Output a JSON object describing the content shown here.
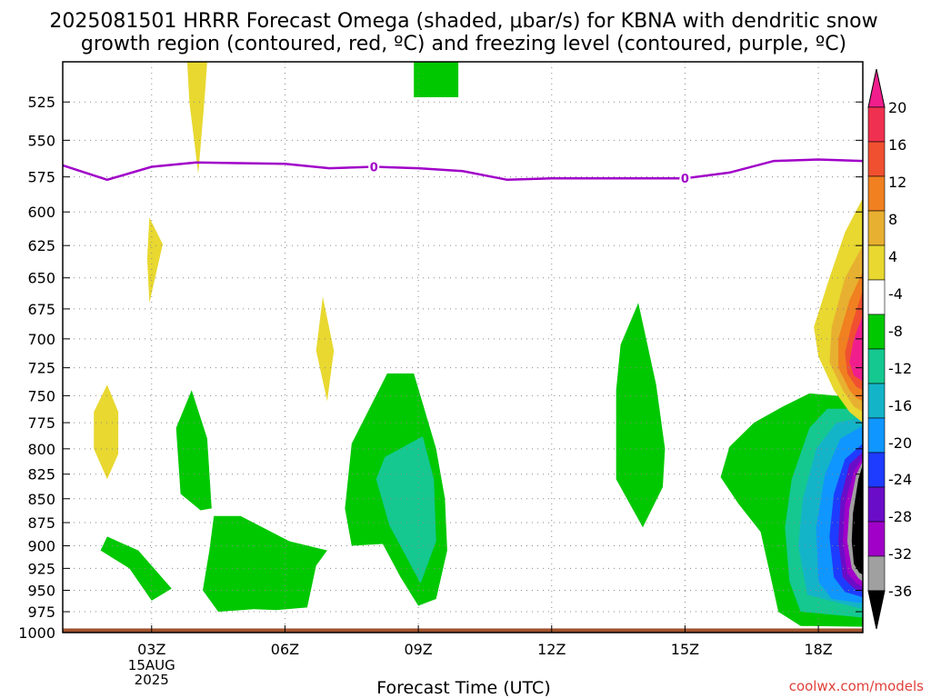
{
  "title_line1": "2025081501 HRRR Forecast Omega (shaded, μbar/s) for KBNA with dendritic snow",
  "title_line2": "growth region (contoured, red, ºC) and freezing level (contoured, purple, ºC)",
  "credit": "coolwx.com/models",
  "colors": {
    "frame": "#000000",
    "grid": "#888888",
    "freezing_level": "#a000c8",
    "terrain": "#a0522d",
    "colorbar": [
      "#000000",
      "#a0a0a0",
      "#a000c8",
      "#6a0dc8",
      "#1e3cff",
      "#0f96ff",
      "#14b4c8",
      "#14c890",
      "#00c800",
      "#ffffff",
      "#e8d830",
      "#e8b030",
      "#f08020",
      "#f05030",
      "#f03050",
      "#f01e8c"
    ]
  },
  "chart_data": {
    "type": "heatmap",
    "title": "2025081501 HRRR Forecast Omega (shaded, μbar/s) for KBNA with dendritic snow growth region (contoured, red, ºC) and freezing level (contoured, purple, ºC)",
    "xlabel": "Forecast Time (UTC)",
    "ylabel": "",
    "x_unit": "forecast hour from 2025081501",
    "xlim": [
      0,
      18
    ],
    "ylim": [
      1000,
      500
    ],
    "y_scale": "log",
    "grid": true,
    "x_ticks": [
      {
        "hour": 2,
        "label": "03Z",
        "sub": [
          "15AUG",
          "2025"
        ]
      },
      {
        "hour": 5,
        "label": "06Z"
      },
      {
        "hour": 8,
        "label": "09Z"
      },
      {
        "hour": 11,
        "label": "12Z"
      },
      {
        "hour": 14,
        "label": "15Z"
      },
      {
        "hour": 17,
        "label": "18Z"
      }
    ],
    "y_ticks": [
      525,
      550,
      575,
      600,
      625,
      650,
      675,
      700,
      725,
      750,
      775,
      800,
      825,
      850,
      875,
      900,
      925,
      950,
      975,
      1000
    ],
    "freezing_level": {
      "contour_labels": [
        "0",
        "0"
      ],
      "label_hours": [
        7,
        14
      ],
      "points": [
        [
          0,
          567
        ],
        [
          1,
          577
        ],
        [
          2,
          568
        ],
        [
          3,
          565
        ],
        [
          5,
          566
        ],
        [
          6,
          569
        ],
        [
          7,
          568
        ],
        [
          8,
          569
        ],
        [
          9,
          571
        ],
        [
          10,
          577
        ],
        [
          11,
          576
        ],
        [
          14,
          576
        ],
        [
          15,
          572
        ],
        [
          16,
          564
        ],
        [
          17,
          563
        ],
        [
          18,
          564
        ]
      ]
    },
    "omega_regions": [
      {
        "level": "4 to 8",
        "color": "#e8d830",
        "points": [
          [
            2.8,
            500
          ],
          [
            3.25,
            500
          ],
          [
            3.2,
            520
          ],
          [
            3.05,
            573
          ],
          [
            2.85,
            525
          ]
        ]
      },
      {
        "level": "4 to 8",
        "color": "#e8d830",
        "points": [
          [
            1.95,
            604
          ],
          [
            2.25,
            624
          ],
          [
            1.95,
            670
          ],
          [
            1.9,
            635
          ]
        ]
      },
      {
        "level": "4 to 8",
        "color": "#e8d830",
        "points": [
          [
            5.85,
            665
          ],
          [
            6.1,
            710
          ],
          [
            5.95,
            755
          ],
          [
            5.7,
            710
          ]
        ]
      },
      {
        "level": "4 to 8",
        "color": "#e8d830",
        "points": [
          [
            1.0,
            740
          ],
          [
            1.25,
            765
          ],
          [
            1.25,
            805
          ],
          [
            1.0,
            830
          ],
          [
            0.7,
            800
          ],
          [
            0.7,
            765
          ]
        ]
      },
      {
        "level": "-8 to -4",
        "color": "#00c800",
        "points": [
          [
            7.9,
            500
          ],
          [
            8.9,
            500
          ],
          [
            8.9,
            522
          ],
          [
            7.9,
            522
          ]
        ]
      },
      {
        "level": "-8 to -4",
        "color": "#00c800",
        "points": [
          [
            2.9,
            745
          ],
          [
            3.25,
            790
          ],
          [
            3.35,
            860
          ],
          [
            3.1,
            862
          ],
          [
            2.65,
            845
          ],
          [
            2.55,
            780
          ]
        ]
      },
      {
        "level": "-8 to -4",
        "color": "#00c800",
        "points": [
          [
            1.0,
            890
          ],
          [
            1.7,
            905
          ],
          [
            2.45,
            948
          ],
          [
            2.0,
            962
          ],
          [
            1.5,
            925
          ],
          [
            0.85,
            905
          ]
        ]
      },
      {
        "level": "-8 to -4",
        "color": "#00c800",
        "points": [
          [
            3.4,
            868
          ],
          [
            4.0,
            868
          ],
          [
            5.1,
            895
          ],
          [
            5.95,
            905
          ],
          [
            5.7,
            922
          ],
          [
            5.5,
            970
          ],
          [
            4.8,
            973
          ],
          [
            4.3,
            972
          ],
          [
            3.5,
            975
          ],
          [
            3.15,
            950
          ],
          [
            3.3,
            905
          ]
        ]
      },
      {
        "level": "-8 to -4",
        "color": "#00c800",
        "points": [
          [
            7.3,
            730
          ],
          [
            7.9,
            730
          ],
          [
            8.4,
            800
          ],
          [
            8.6,
            850
          ],
          [
            8.65,
            905
          ],
          [
            8.4,
            960
          ],
          [
            8.0,
            968
          ],
          [
            7.6,
            935
          ],
          [
            7.2,
            898
          ],
          [
            6.5,
            900
          ],
          [
            6.35,
            860
          ],
          [
            6.5,
            795
          ]
        ]
      },
      {
        "level": "-12 to -8",
        "color": "#14c890",
        "points": [
          [
            8.1,
            788
          ],
          [
            8.35,
            830
          ],
          [
            8.4,
            895
          ],
          [
            8.05,
            942
          ],
          [
            7.35,
            878
          ],
          [
            7.05,
            830
          ],
          [
            7.25,
            808
          ]
        ]
      },
      {
        "level": "-8 to -4",
        "color": "#00c800",
        "points": [
          [
            12.95,
            670
          ],
          [
            13.35,
            740
          ],
          [
            13.55,
            800
          ],
          [
            13.5,
            838
          ],
          [
            13.05,
            880
          ],
          [
            12.45,
            830
          ],
          [
            12.45,
            745
          ],
          [
            12.55,
            705
          ]
        ]
      },
      {
        "level": "-8 to -4",
        "color": "#00c800",
        "points": [
          [
            18.0,
            752
          ],
          [
            16.8,
            748
          ],
          [
            16.2,
            760
          ],
          [
            15.55,
            775
          ],
          [
            15.0,
            798
          ],
          [
            14.8,
            828
          ],
          [
            15.2,
            855
          ],
          [
            15.7,
            885
          ],
          [
            15.95,
            940
          ],
          [
            16.1,
            975
          ],
          [
            16.6,
            992
          ],
          [
            18.0,
            993
          ]
        ]
      },
      {
        "level": "-12 to -8",
        "color": "#14c890",
        "points": [
          [
            18.0,
            762
          ],
          [
            17.2,
            762
          ],
          [
            16.8,
            780
          ],
          [
            16.4,
            830
          ],
          [
            16.25,
            880
          ],
          [
            16.35,
            940
          ],
          [
            16.6,
            975
          ],
          [
            18.0,
            982
          ]
        ]
      },
      {
        "level": "-16 to -12",
        "color": "#14b4c8",
        "points": [
          [
            18.0,
            770
          ],
          [
            17.4,
            775
          ],
          [
            16.95,
            800
          ],
          [
            16.65,
            850
          ],
          [
            16.55,
            900
          ],
          [
            16.75,
            955
          ],
          [
            18.0,
            972
          ]
        ]
      },
      {
        "level": "-20 to -16",
        "color": "#0f96ff",
        "points": [
          [
            18.0,
            778
          ],
          [
            17.5,
            790
          ],
          [
            17.15,
            825
          ],
          [
            16.95,
            880
          ],
          [
            17.0,
            940
          ],
          [
            17.3,
            960
          ],
          [
            18.0,
            965
          ]
        ]
      },
      {
        "level": "-24 to -20",
        "color": "#1e3cff",
        "points": [
          [
            18.0,
            795
          ],
          [
            17.6,
            810
          ],
          [
            17.35,
            845
          ],
          [
            17.25,
            890
          ],
          [
            17.35,
            935
          ],
          [
            17.6,
            952
          ],
          [
            18.0,
            958
          ]
        ]
      },
      {
        "level": "-28 to -24",
        "color": "#6a0dc8",
        "points": [
          [
            18.0,
            803
          ],
          [
            17.7,
            815
          ],
          [
            17.5,
            850
          ],
          [
            17.45,
            895
          ],
          [
            17.55,
            935
          ],
          [
            17.8,
            948
          ],
          [
            18.0,
            952
          ]
        ]
      },
      {
        "level": "-32 to -28",
        "color": "#a000c8",
        "points": [
          [
            18.0,
            808
          ],
          [
            17.8,
            822
          ],
          [
            17.6,
            855
          ],
          [
            17.55,
            895
          ],
          [
            17.65,
            930
          ],
          [
            17.85,
            942
          ],
          [
            18.0,
            946
          ]
        ]
      },
      {
        "level": "-36 to -32",
        "color": "#a0a0a0",
        "points": [
          [
            18.0,
            812
          ],
          [
            17.85,
            826
          ],
          [
            17.7,
            860
          ],
          [
            17.65,
            895
          ],
          [
            17.75,
            925
          ],
          [
            17.9,
            936
          ],
          [
            18.0,
            940
          ]
        ]
      },
      {
        "level": "< -36",
        "color": "#000000",
        "points": [
          [
            18.0,
            815
          ],
          [
            17.9,
            830
          ],
          [
            17.78,
            865
          ],
          [
            17.75,
            895
          ],
          [
            17.8,
            920
          ],
          [
            17.92,
            930
          ],
          [
            18.0,
            932
          ]
        ]
      },
      {
        "level": "4 to 8",
        "color": "#e8d830",
        "points": [
          [
            18.0,
            590
          ],
          [
            17.6,
            615
          ],
          [
            17.25,
            650
          ],
          [
            16.9,
            690
          ],
          [
            17.0,
            715
          ],
          [
            17.35,
            745
          ],
          [
            17.7,
            765
          ],
          [
            18.0,
            775
          ]
        ]
      },
      {
        "level": "8 to 12",
        "color": "#e8b030",
        "points": [
          [
            18.0,
            625
          ],
          [
            17.6,
            650
          ],
          [
            17.3,
            690
          ],
          [
            17.25,
            720
          ],
          [
            17.55,
            745
          ],
          [
            17.8,
            760
          ],
          [
            18.0,
            765
          ]
        ]
      },
      {
        "level": "12 to 16",
        "color": "#f08020",
        "points": [
          [
            18.0,
            645
          ],
          [
            17.7,
            668
          ],
          [
            17.45,
            700
          ],
          [
            17.45,
            725
          ],
          [
            17.7,
            745
          ],
          [
            17.85,
            752
          ],
          [
            18.0,
            755
          ]
        ]
      },
      {
        "level": "16 to 20",
        "color": "#f05030",
        "points": [
          [
            18.0,
            660
          ],
          [
            17.75,
            688
          ],
          [
            17.6,
            712
          ],
          [
            17.65,
            730
          ],
          [
            17.85,
            742
          ],
          [
            18.0,
            745
          ]
        ]
      },
      {
        "level": "> 20",
        "color": "#f01e8c",
        "points": [
          [
            18.0,
            680
          ],
          [
            17.8,
            700
          ],
          [
            17.7,
            720
          ],
          [
            17.8,
            732
          ],
          [
            18.0,
            737
          ]
        ]
      }
    ],
    "terrain_level": 995,
    "colorbar": {
      "label": "μbar/s",
      "labels": [
        "20",
        "16",
        "12",
        "8",
        "4",
        "-4",
        "-8",
        "-12",
        "-16",
        "-20",
        "-24",
        "-28",
        "-32",
        "-36"
      ],
      "values": [
        20,
        16,
        12,
        8,
        4,
        -4,
        -8,
        -12,
        -16,
        -20,
        -24,
        -28,
        -32,
        -36
      ]
    }
  }
}
